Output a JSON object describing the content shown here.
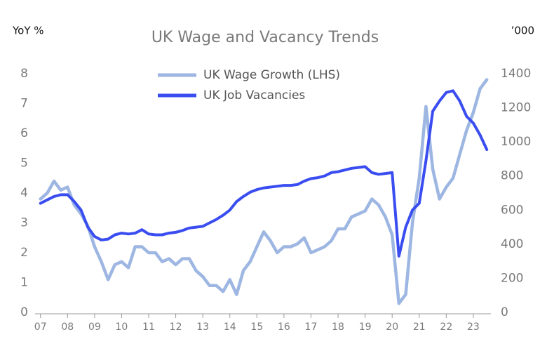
{
  "chart_data": {
    "type": "line",
    "title": "UK Wage and Vacancy Trends",
    "y_label": "YoY %",
    "y2_label": "’000",
    "x": [
      2007,
      2007.25,
      2007.5,
      2007.75,
      2008,
      2008.25,
      2008.5,
      2008.75,
      2009,
      2009.25,
      2009.5,
      2009.75,
      2010,
      2010.25,
      2010.5,
      2010.75,
      2011,
      2011.25,
      2011.5,
      2011.75,
      2012,
      2012.25,
      2012.5,
      2012.75,
      2013,
      2013.25,
      2013.5,
      2013.75,
      2014,
      2014.25,
      2014.5,
      2014.75,
      2015,
      2015.25,
      2015.5,
      2015.75,
      2016,
      2016.25,
      2016.5,
      2016.75,
      2017,
      2017.25,
      2017.5,
      2017.75,
      2018,
      2018.25,
      2018.5,
      2018.75,
      2019,
      2019.25,
      2019.5,
      2019.75,
      2020,
      2020.25,
      2020.5,
      2020.75,
      2021,
      2021.25,
      2021.5,
      2021.75,
      2022,
      2022.25,
      2022.5,
      2022.75,
      2023,
      2023.25,
      2023.5
    ],
    "series": [
      {
        "name": "UK Wage Growth (LHS)",
        "color": "#9db6e2",
        "axis": "y",
        "values": [
          3.8,
          4.0,
          4.4,
          4.1,
          4.2,
          3.6,
          3.3,
          2.9,
          2.2,
          1.7,
          1.1,
          1.6,
          1.7,
          1.5,
          2.2,
          2.2,
          2.0,
          2.0,
          1.7,
          1.8,
          1.6,
          1.8,
          1.8,
          1.4,
          1.2,
          0.9,
          0.9,
          0.7,
          1.1,
          0.6,
          1.4,
          1.7,
          2.2,
          2.7,
          2.4,
          2.0,
          2.2,
          2.2,
          2.3,
          2.5,
          2.0,
          2.1,
          2.2,
          2.4,
          2.8,
          2.8,
          3.2,
          3.3,
          3.4,
          3.8,
          3.6,
          3.2,
          2.6,
          0.3,
          0.6,
          3.0,
          4.5,
          6.9,
          4.8,
          3.8,
          4.2,
          4.5,
          5.3,
          6.1,
          6.7,
          7.5,
          7.8
        ]
      },
      {
        "name": "UK Job Vacancies",
        "color": "#3a4df0",
        "axis": "y2",
        "values": [
          640,
          660,
          680,
          690,
          690,
          650,
          600,
          500,
          445,
          425,
          430,
          455,
          465,
          460,
          465,
          485,
          460,
          455,
          455,
          465,
          470,
          480,
          495,
          500,
          505,
          525,
          545,
          570,
          600,
          650,
          680,
          705,
          720,
          730,
          735,
          740,
          745,
          745,
          750,
          770,
          785,
          790,
          800,
          820,
          825,
          835,
          845,
          850,
          855,
          820,
          810,
          815,
          820,
          330,
          500,
          600,
          640,
          890,
          1180,
          1240,
          1290,
          1300,
          1240,
          1150,
          1110,
          1040,
          955
        ]
      }
    ],
    "xlim": [
      2006.8,
      2023.65
    ],
    "xticks": [
      {
        "value": 2007,
        "label": "07"
      },
      {
        "value": 2008,
        "label": "08"
      },
      {
        "value": 2009,
        "label": "09"
      },
      {
        "value": 2010,
        "label": "10"
      },
      {
        "value": 2011,
        "label": "11"
      },
      {
        "value": 2012,
        "label": "12"
      },
      {
        "value": 2013,
        "label": "13"
      },
      {
        "value": 2014,
        "label": "14"
      },
      {
        "value": 2015,
        "label": "15"
      },
      {
        "value": 2016,
        "label": "16"
      },
      {
        "value": 2017,
        "label": "17"
      },
      {
        "value": 2018,
        "label": "18"
      },
      {
        "value": 2019,
        "label": "19"
      },
      {
        "value": 2020,
        "label": "20"
      },
      {
        "value": 2021,
        "label": "21"
      },
      {
        "value": 2022,
        "label": "22"
      },
      {
        "value": 2023,
        "label": "23"
      }
    ],
    "ylim": [
      0,
      8
    ],
    "yticks": [
      0,
      1,
      2,
      3,
      4,
      5,
      6,
      7,
      8
    ],
    "y2lim": [
      0,
      1400
    ],
    "y2ticks": [
      0,
      200,
      400,
      600,
      800,
      1000,
      1200,
      1400
    ],
    "legend": "top"
  }
}
